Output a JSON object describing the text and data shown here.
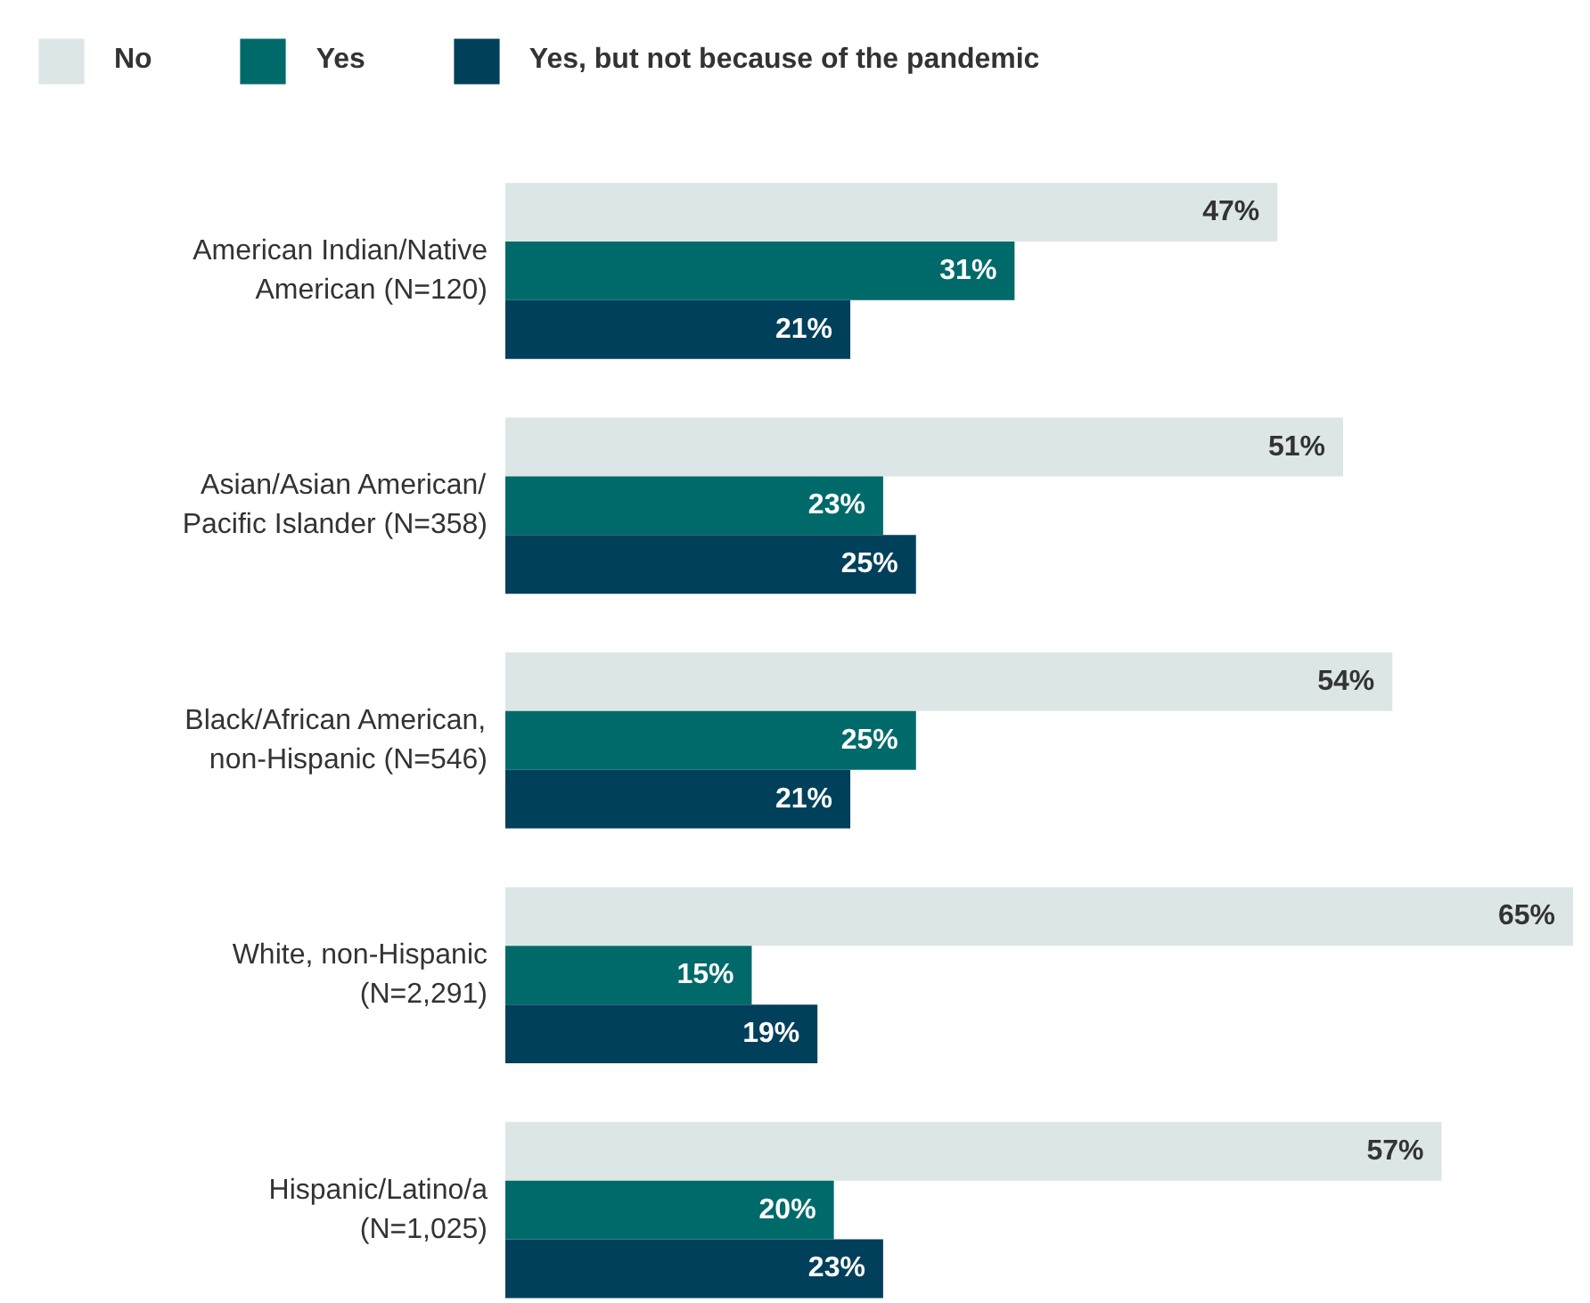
{
  "chart_data": {
    "type": "bar",
    "orientation": "horizontal",
    "categories": [
      "American Indian/Native\nAmerican (N=120)",
      "Asian/Asian American/\nPacific Islander (N=358)",
      "Black/African American,\nnon-Hispanic (N=546)",
      "White, non-Hispanic\n(N=2,291)",
      "Hispanic/Latino/a\n(N=1,025)"
    ],
    "series": [
      {
        "name": "No",
        "color": "#dde6e6",
        "values": [
          47,
          51,
          54,
          65,
          57
        ],
        "value_labels": [
          "47%",
          "51%",
          "54%",
          "65%",
          "57%"
        ]
      },
      {
        "name": "Yes",
        "color": "#006a6a",
        "values": [
          31,
          23,
          25,
          15,
          20
        ],
        "value_labels": [
          "31%",
          "23%",
          "25%",
          "15%",
          "20%"
        ]
      },
      {
        "name": "Yes, but not because of the pandemic",
        "color": "#00405a",
        "values": [
          21,
          25,
          21,
          19,
          23
        ],
        "value_labels": [
          "21%",
          "25%",
          "21%",
          "19%",
          "23%"
        ]
      }
    ],
    "legend": "top",
    "grid": false
  }
}
